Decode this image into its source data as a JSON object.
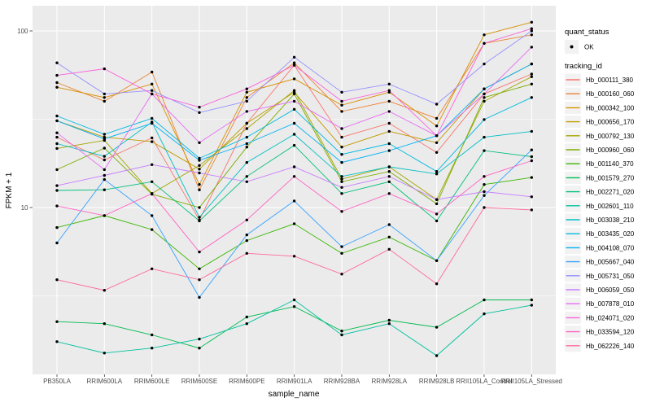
{
  "axes": {
    "x_title": "sample_name",
    "y_title": "FPKM + 1",
    "y_tick_labels": [
      "100",
      "10"
    ]
  },
  "legend": {
    "quant_status_title": "quant_status",
    "quant_status_items": [
      {
        "label": "OK"
      }
    ],
    "tracking_title": "tracking_id"
  },
  "chart_data": {
    "type": "line",
    "title": "",
    "xlabel": "sample_name",
    "ylabel": "FPKM + 1",
    "y_scale": "log10",
    "y_major_ticks": [
      10,
      100
    ],
    "y_minor_ticks": [
      3.162,
      31.62
    ],
    "ylim": [
      1.14,
      139
    ],
    "grid": true,
    "legend_position": "right",
    "point_shape": "black-dot",
    "categories": [
      "PB350LA",
      "RRIM600LA",
      "RRIM600LE",
      "RRIM600SE",
      "RRIM600PE",
      "RRIM901LA",
      "RRIM928BA",
      "RRIM928LA",
      "RRIM928LB",
      "RRII105LA_Control",
      "RRII105LA_Stressed"
    ],
    "series": [
      {
        "name": "Hb_000111_380",
        "color": "#F8766D",
        "values": [
          25,
          18.6,
          24.8,
          8.5,
          30,
          64,
          25,
          30,
          20.5,
          44,
          57
        ]
      },
      {
        "name": "Hb_000160_060",
        "color": "#EA8331",
        "values": [
          51,
          40,
          58.5,
          12.6,
          42,
          66,
          35,
          40,
          32,
          85,
          95
        ]
      },
      {
        "name": "Hb_000342_100",
        "color": "#D89000",
        "values": [
          48,
          42,
          50,
          13.5,
          45,
          53.5,
          38,
          45,
          29,
          95,
          112
        ]
      },
      {
        "name": "Hb_000656_170",
        "color": "#C09B00",
        "values": [
          31,
          25,
          23.6,
          16.5,
          30,
          45,
          22,
          27,
          23.3,
          47,
          65
        ]
      },
      {
        "name": "Hb_000792_130",
        "color": "#A3A500",
        "values": [
          21.6,
          24,
          12,
          17.3,
          28,
          46,
          14.5,
          17,
          11.1,
          40,
          55
        ]
      },
      {
        "name": "Hb_000960_060",
        "color": "#7CAE00",
        "values": [
          16.4,
          21.7,
          11.9,
          10,
          22,
          44,
          14,
          16,
          10.5,
          42,
          50
        ]
      },
      {
        "name": "Hb_001140_370",
        "color": "#39B600",
        "values": [
          7.7,
          9,
          7.5,
          4.5,
          6.5,
          8.1,
          5.5,
          6.8,
          5.0,
          13.5,
          14.8
        ]
      },
      {
        "name": "Hb_001579_270",
        "color": "#00BB4E",
        "values": [
          2.26,
          2.2,
          1.9,
          1.6,
          2.4,
          2.75,
          2.0,
          2.3,
          2.1,
          3.0,
          3.0
        ]
      },
      {
        "name": "Hb_002271_020",
        "color": "#00C079",
        "values": [
          12.5,
          12.6,
          14,
          8.4,
          15,
          22.5,
          12,
          14,
          8.4,
          21,
          19.4
        ]
      },
      {
        "name": "Hb_002601_110",
        "color": "#00C19F",
        "values": [
          1.74,
          1.5,
          1.6,
          1.8,
          2.2,
          3.0,
          1.9,
          2.2,
          1.45,
          2.5,
          2.8
        ]
      },
      {
        "name": "Hb_003038_210",
        "color": "#00BFC4",
        "values": [
          23,
          19.5,
          30.5,
          8.8,
          18,
          26,
          15,
          17,
          15.5,
          25,
          27
        ]
      },
      {
        "name": "Hb_003435_020",
        "color": "#00BAE0",
        "values": [
          33,
          26,
          32,
          19,
          25,
          36,
          20,
          23,
          16,
          31.5,
          42
        ]
      },
      {
        "name": "Hb_004108_070",
        "color": "#00B0F6",
        "values": [
          31,
          24.5,
          30,
          18.5,
          23,
          30,
          18,
          21,
          25.5,
          47,
          65
        ]
      },
      {
        "name": "Hb_005667_040",
        "color": "#35A2FF",
        "values": [
          6.3,
          14.4,
          9,
          3.1,
          7,
          10.9,
          6,
          8,
          5.0,
          11.7,
          21.2
        ]
      },
      {
        "name": "Hb_005731_050",
        "color": "#9590FF",
        "values": [
          66,
          44,
          46,
          34.5,
          40,
          71,
          45,
          50,
          38.5,
          65,
          100
        ]
      },
      {
        "name": "Hb_006059_050",
        "color": "#C77CFF",
        "values": [
          13.3,
          15.2,
          17.5,
          15.7,
          14,
          17,
          13,
          15,
          11.1,
          12.3,
          11.5
        ]
      },
      {
        "name": "Hb_007878_010",
        "color": "#E76BF3",
        "values": [
          26.5,
          16.4,
          44,
          23.3,
          35,
          40,
          28,
          35,
          25.5,
          44,
          81
        ]
      },
      {
        "name": "Hb_024071_020",
        "color": "#FA62DB",
        "values": [
          56,
          61,
          44,
          37,
          47,
          64,
          40,
          46,
          25.5,
          85,
          103
        ]
      },
      {
        "name": "Hb_033594_120",
        "color": "#FF61C3",
        "values": [
          10.2,
          9,
          12,
          5.6,
          8.5,
          15,
          9.5,
          12,
          9.2,
          15,
          18.4
        ]
      },
      {
        "name": "Hb_062226_140",
        "color": "#FF6A98",
        "values": [
          3.9,
          3.4,
          4.5,
          3.9,
          5.5,
          5.3,
          4.2,
          5.8,
          3.7,
          10.0,
          9.7
        ]
      }
    ]
  },
  "colors": {
    "panel_background": "#EBEBEB",
    "grid": "#FFFFFF",
    "axis_text": "#4D4D4D",
    "legend_key_background": "#F2F2F2",
    "point": "#000000"
  }
}
